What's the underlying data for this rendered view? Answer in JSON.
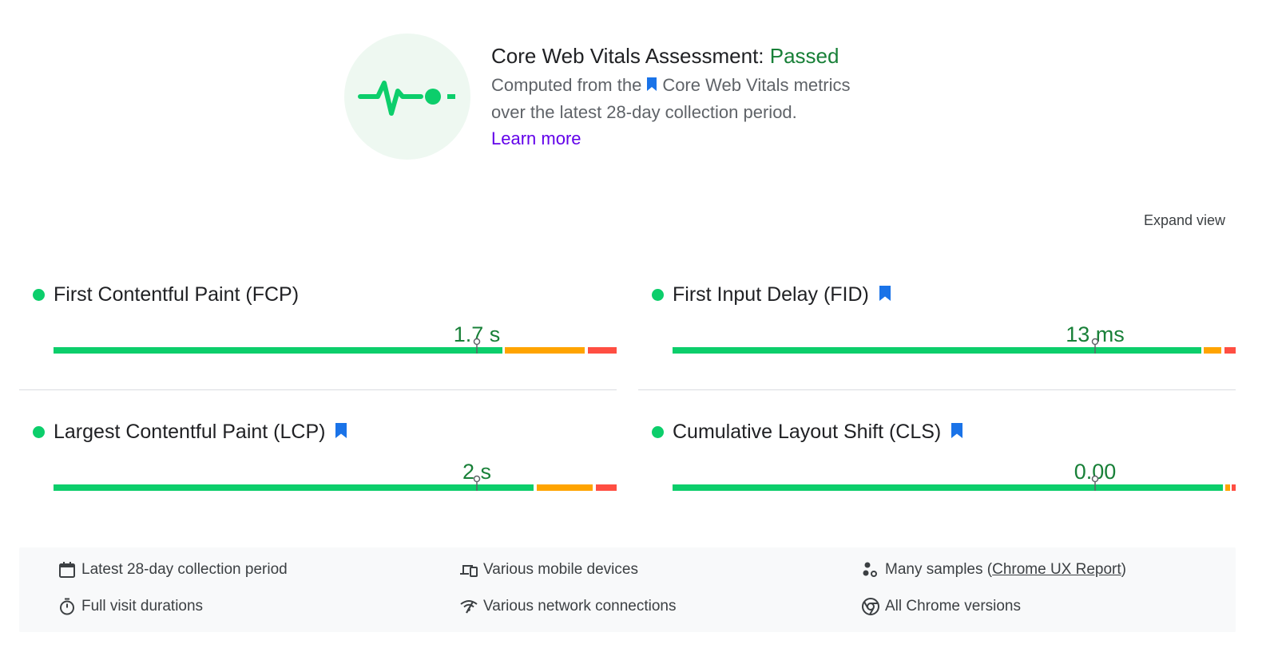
{
  "assessment": {
    "title_prefix": "Core Web Vitals Assessment: ",
    "status": "Passed",
    "desc_line1_a": "Computed from the",
    "desc_line1_b": "Core Web Vitals metrics",
    "desc_line2": "over the latest 28-day collection period.",
    "learn_more": "Learn more",
    "icon": "pulse-icon",
    "status_color": "#188038"
  },
  "expand_view": "Expand view",
  "metrics": [
    {
      "name": "First Contentful Paint (FCP)",
      "value": "1.7 s",
      "rating": "good",
      "core_vital": false
    },
    {
      "name": "First Input Delay (FID)",
      "value": "13 ms",
      "rating": "good",
      "core_vital": true
    },
    {
      "name": "Largest Contentful Paint (LCP)",
      "value": "2 s",
      "rating": "good",
      "core_vital": true
    },
    {
      "name": "Cumulative Layout Shift (CLS)",
      "value": "0.00",
      "rating": "good",
      "core_vital": true
    }
  ],
  "colors": {
    "good": "#0cce6b",
    "needs_improvement": "#ffa400",
    "poor": "#ff4e42",
    "link": "#6200ea",
    "bookmark": "#1a73e8"
  },
  "info": {
    "collection_period": "Latest 28-day collection period",
    "visit_durations": "Full visit durations",
    "devices": "Various mobile devices",
    "network": "Various network connections",
    "samples_prefix": "Many samples (",
    "samples_link": "Chrome UX Report",
    "samples_suffix": ")",
    "chrome_versions": "All Chrome versions"
  }
}
